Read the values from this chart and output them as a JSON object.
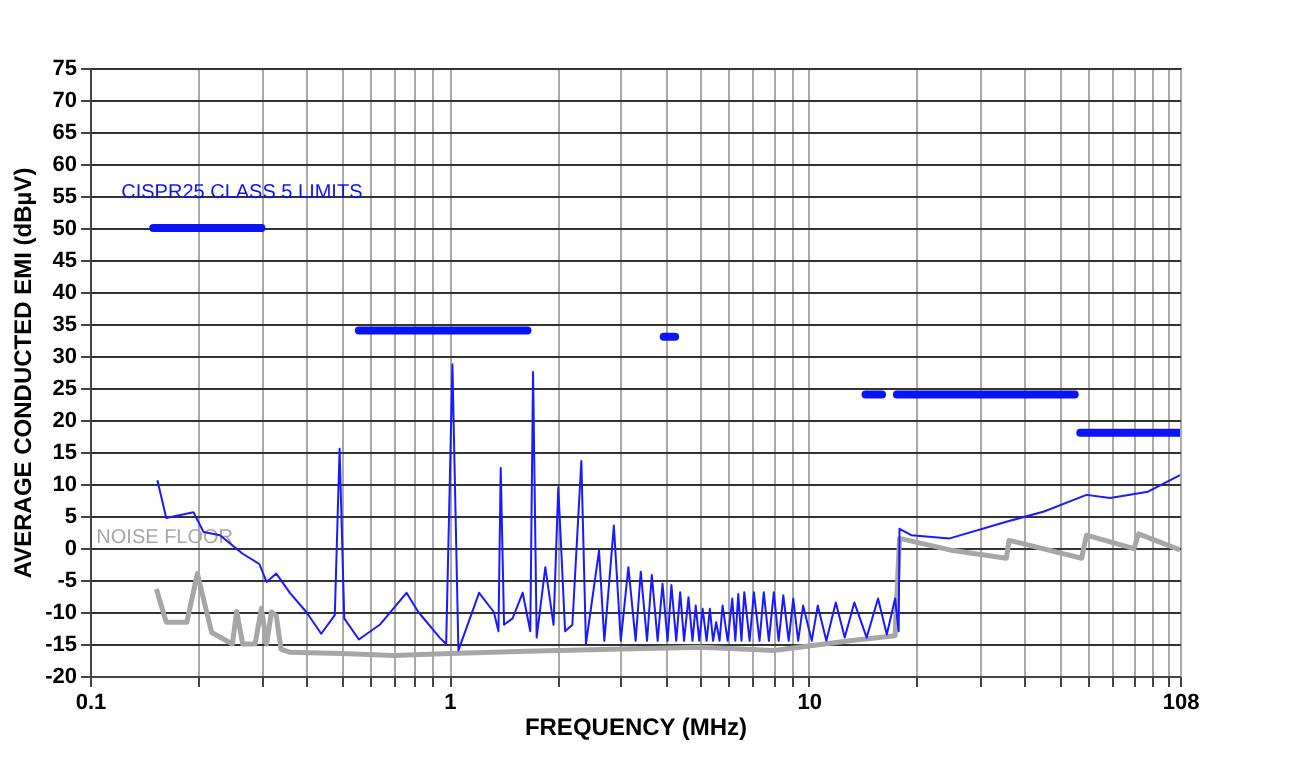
{
  "chart_data": {
    "type": "line",
    "xlabel": "FREQUENCY (MHz)",
    "ylabel": "AVERAGE CONDUCTED EMI (dBµV)",
    "log": "x",
    "grid": true,
    "xlim": [
      0.1,
      108
    ],
    "xticks": [
      0.1,
      {
        "value": 0.2,
        "label": null
      },
      {
        "value": 0.3,
        "label": null
      },
      {
        "value": 0.4,
        "label": null
      },
      {
        "value": 0.5,
        "label": null
      },
      {
        "value": 0.6,
        "label": null
      },
      {
        "value": 0.7,
        "label": null
      },
      {
        "value": 0.8,
        "label": null
      },
      {
        "value": 0.9,
        "label": null
      },
      1,
      {
        "value": 2,
        "label": null
      },
      {
        "value": 3,
        "label": null
      },
      {
        "value": 4,
        "label": null
      },
      {
        "value": 5,
        "label": null
      },
      {
        "value": 6,
        "label": null
      },
      {
        "value": 7,
        "label": null
      },
      {
        "value": 8,
        "label": null
      },
      {
        "value": 9,
        "label": null
      },
      10,
      {
        "value": 20,
        "label": null
      },
      {
        "value": 30,
        "label": null
      },
      {
        "value": 40,
        "label": null
      },
      {
        "value": 50,
        "label": null
      },
      {
        "value": 60,
        "label": null
      },
      {
        "value": 70,
        "label": null
      },
      {
        "value": 80,
        "label": null
      },
      {
        "value": 90,
        "label": null
      },
      {
        "value": 100,
        "label": null
      },
      108
    ],
    "ylim": [
      -20,
      75
    ],
    "yticks": [
      -20,
      -15,
      -10,
      -5,
      0,
      5,
      10,
      15,
      20,
      25,
      30,
      35,
      40,
      45,
      50,
      55,
      60,
      65,
      70,
      75
    ],
    "series": [
      {
        "name": "NOISE FLOOR",
        "color": "#a6a6a6",
        "x": [
          0.153,
          0.163,
          0.186,
          0.199,
          0.218,
          0.249,
          0.256,
          0.266,
          0.288,
          0.3,
          0.31,
          0.32,
          0.33,
          0.34,
          0.36,
          0.5,
          0.7,
          1,
          2,
          5,
          8,
          13,
          17.4,
          17.9,
          24.7,
          35.5,
          36.1,
          57.5,
          59.3,
          80.4,
          82.8,
          108
        ],
        "values": [
          -6.4,
          -11.6,
          -11.6,
          -4,
          -13.2,
          -15,
          -9.9,
          -15,
          -15,
          -9.4,
          -15,
          -10,
          -10.6,
          -15.8,
          -16.3,
          -16.5,
          -16.8,
          -16.5,
          -16,
          -15.5,
          -16,
          -14.5,
          -13.7,
          1.5,
          -0.3,
          -1.6,
          1.2,
          -1.6,
          2,
          -0.1,
          2.2,
          -0.3
        ]
      },
      {
        "color": "#1a1aff",
        "x": [
          0.154,
          0.163,
          0.194,
          0.207,
          0.23,
          0.266,
          0.296,
          0.31,
          0.33,
          0.36,
          0.4,
          0.44,
          0.48,
          0.495,
          0.51,
          0.56,
          0.64,
          0.71,
          0.76,
          0.82,
          0.94,
          0.98,
          1.02,
          1.06,
          1.21,
          1.33,
          1.37,
          1.39,
          1.42,
          1.5,
          1.6,
          1.68,
          1.71,
          1.75,
          1.85,
          1.95,
          2.01,
          2.1,
          2.2,
          2.33,
          2.4,
          2.61,
          2.7,
          2.87,
          3.0,
          3.15,
          3.3,
          3.41,
          3.55,
          3.66,
          3.8,
          3.92,
          4.05,
          4.15,
          4.28,
          4.39,
          4.5,
          4.63,
          4.75,
          4.85,
          4.96,
          5.07,
          5.2,
          5.31,
          5.42,
          5.53,
          5.65,
          5.76,
          5.95,
          6.13,
          6.25,
          6.37,
          6.5,
          6.62,
          6.85,
          7.04,
          7.3,
          7.5,
          7.75,
          8.0,
          8.25,
          8.5,
          8.8,
          9.06,
          9.35,
          9.65,
          10.2,
          10.6,
          11.2,
          11.9,
          12.6,
          13.4,
          14.5,
          15.6,
          16.5,
          17.4,
          17.8,
          17.9,
          19.3,
          24.7,
          35.5,
          45.2,
          59.3,
          69,
          88,
          108
        ],
        "values": [
          10.6,
          4.7,
          5.6,
          2.5,
          2,
          -0.9,
          -2.5,
          -5.3,
          -4,
          -7,
          -10,
          -13.4,
          -10.5,
          15.5,
          -11,
          -14.3,
          -12,
          -9,
          -7,
          -10,
          -14,
          -15,
          28.7,
          -16,
          -7,
          -10,
          -13,
          12.5,
          -12,
          -11,
          -7,
          -13,
          27.5,
          -14,
          -3,
          -12,
          9.5,
          -13,
          -12,
          13.6,
          -15,
          -0.4,
          -14.5,
          3.5,
          -14.5,
          -3,
          -14.5,
          -3.7,
          -14.5,
          -4.2,
          -14.5,
          -5.6,
          -14.5,
          -5.8,
          -14.5,
          -6.9,
          -14.5,
          -7.7,
          -14.5,
          -9,
          -14.5,
          -9.5,
          -14.5,
          -9.5,
          -14.5,
          -11.6,
          -14.5,
          -9,
          -14.5,
          -7.9,
          -14.5,
          -7.2,
          -14.5,
          -6.9,
          -14.5,
          -6.9,
          -14.5,
          -6.9,
          -14.5,
          -6.9,
          -14.5,
          -7.4,
          -14.5,
          -7.9,
          -14.5,
          -9,
          -14.5,
          -9,
          -14.5,
          -8.5,
          -14,
          -8.5,
          -14,
          -7.9,
          -13.5,
          -7.9,
          -13,
          3,
          2,
          1.5,
          4.1,
          5.7,
          8.3,
          7.8,
          8.8,
          11.4
        ]
      },
      {
        "name": "CISPR25 CLASS 5 LIMITS",
        "color": "#0a14f5",
        "x": [
          0.15,
          0.3
        ],
        "values": [
          50,
          50
        ]
      },
      {
        "color": "#0a14f5",
        "x": [
          0.56,
          1.65
        ],
        "values": [
          34,
          34
        ]
      },
      {
        "color": "#0a14f5",
        "x": [
          3.95,
          4.25
        ],
        "values": [
          33,
          33
        ]
      },
      {
        "color": "#0a14f5",
        "x": [
          14.4,
          16.0
        ],
        "values": [
          24,
          24
        ]
      },
      {
        "color": "#0a14f5",
        "x": [
          17.6,
          55
        ],
        "values": [
          24,
          24
        ]
      },
      {
        "color": "#0a14f5",
        "x": [
          57,
          108
        ],
        "values": [
          18,
          18
        ]
      }
    ]
  }
}
